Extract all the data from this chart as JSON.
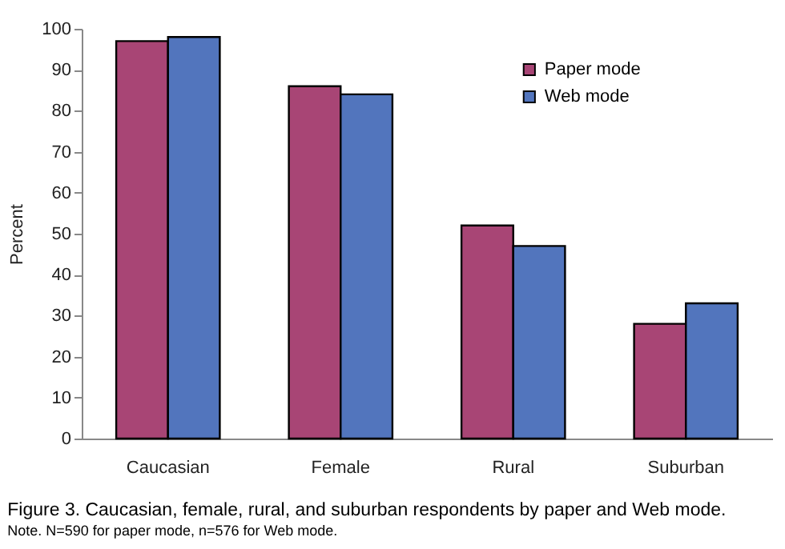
{
  "chart_data": {
    "type": "bar",
    "title": "Figure 3. Caucasian, female, rural, and suburban respondents by paper and Web mode.",
    "subtitle": "Note. N=590 for paper mode, n=576 for Web mode.",
    "ylabel": "Percent",
    "categories": [
      "Caucasian",
      "Female",
      "Rural",
      "Suburban"
    ],
    "series": [
      {
        "name": "Paper mode",
        "color": "#a84575",
        "values": [
          97,
          86,
          52,
          28
        ]
      },
      {
        "name": "Web mode",
        "color": "#5275bd",
        "values": [
          98,
          84,
          47,
          33
        ]
      }
    ],
    "ylim": [
      0,
      100
    ],
    "yticks": [
      0,
      10,
      20,
      30,
      40,
      50,
      60,
      70,
      80,
      90,
      100
    ],
    "grid": false,
    "legend": "top right"
  }
}
